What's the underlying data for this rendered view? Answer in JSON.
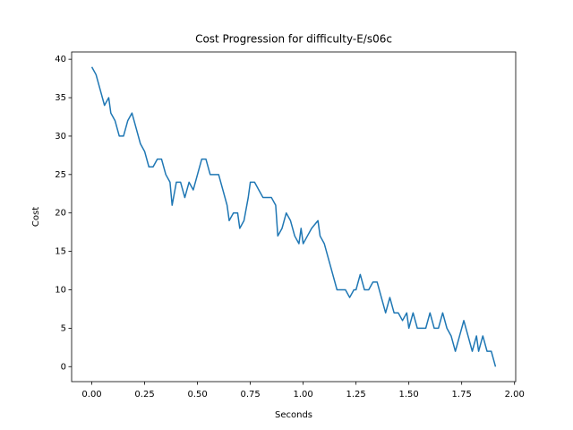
{
  "chart_data": {
    "type": "line",
    "title": "Cost Progression for difficulty-E/s06c",
    "xlabel": "Seconds",
    "ylabel": "Cost",
    "x": [
      0,
      0.02,
      0.04,
      0.06,
      0.08,
      0.09,
      0.11,
      0.13,
      0.15,
      0.17,
      0.19,
      0.21,
      0.23,
      0.25,
      0.27,
      0.29,
      0.31,
      0.33,
      0.35,
      0.37,
      0.38,
      0.4,
      0.42,
      0.44,
      0.46,
      0.48,
      0.5,
      0.52,
      0.54,
      0.56,
      0.58,
      0.6,
      0.62,
      0.64,
      0.65,
      0.67,
      0.69,
      0.7,
      0.72,
      0.74,
      0.75,
      0.77,
      0.79,
      0.81,
      0.83,
      0.85,
      0.87,
      0.88,
      0.9,
      0.92,
      0.94,
      0.96,
      0.98,
      0.99,
      1.0,
      1.02,
      1.04,
      1.07,
      1.08,
      1.1,
      1.12,
      1.14,
      1.16,
      1.18,
      1.2,
      1.22,
      1.24,
      1.25,
      1.27,
      1.29,
      1.31,
      1.33,
      1.35,
      1.37,
      1.39,
      1.41,
      1.43,
      1.45,
      1.47,
      1.49,
      1.5,
      1.52,
      1.54,
      1.56,
      1.58,
      1.6,
      1.62,
      1.64,
      1.66,
      1.68,
      1.7,
      1.72,
      1.74,
      1.76,
      1.78,
      1.8,
      1.82,
      1.83,
      1.85,
      1.87,
      1.89,
      1.91
    ],
    "series": [
      {
        "name": "Cost",
        "color": "#1f77b4",
        "values": [
          39,
          38,
          36,
          34,
          35,
          33,
          32,
          30,
          30,
          32,
          33,
          31,
          29,
          28,
          26,
          26,
          27,
          27,
          25,
          24,
          21,
          24,
          24,
          22,
          24,
          23,
          25,
          27,
          27,
          25,
          25,
          25,
          23,
          21,
          19,
          20,
          20,
          18,
          19,
          22,
          24,
          24,
          23,
          22,
          22,
          22,
          21,
          17,
          18,
          20,
          19,
          17,
          16,
          18,
          16,
          17,
          18,
          19,
          17,
          16,
          14,
          12,
          10,
          10,
          10,
          9,
          10,
          10,
          12,
          10,
          10,
          11,
          11,
          9,
          7,
          9,
          7,
          7,
          6,
          7,
          5,
          7,
          5,
          5,
          5,
          7,
          5,
          5,
          7,
          5,
          4,
          2,
          4,
          6,
          4,
          2,
          4,
          2,
          4,
          2,
          2,
          0
        ]
      }
    ],
    "xlim": [
      -0.0955,
      2.0055
    ],
    "ylim": [
      -1.95,
      40.95
    ],
    "xticks": [
      {
        "value": 0,
        "label": "0.00"
      },
      {
        "value": 0.25,
        "label": "0.25"
      },
      {
        "value": 0.5,
        "label": "0.50"
      },
      {
        "value": 0.75,
        "label": "0.75"
      },
      {
        "value": 1,
        "label": "1.00"
      },
      {
        "value": 1.25,
        "label": "1.25"
      },
      {
        "value": 1.5,
        "label": "1.50"
      },
      {
        "value": 1.75,
        "label": "1.75"
      },
      {
        "value": 2,
        "label": "2.00"
      }
    ],
    "yticks": [
      0,
      5,
      10,
      15,
      20,
      25,
      30,
      35,
      40
    ]
  }
}
